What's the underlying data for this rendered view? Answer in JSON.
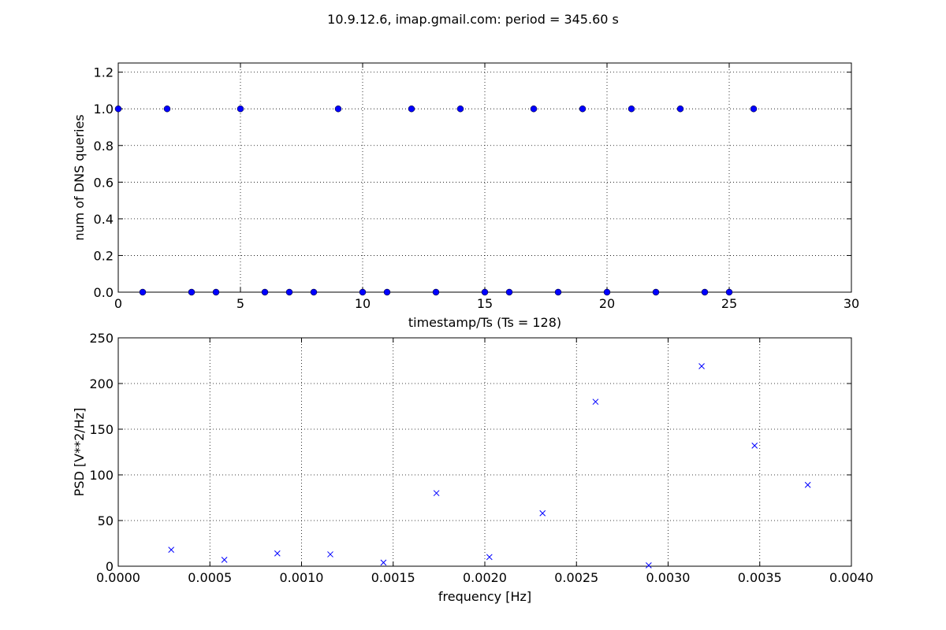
{
  "figure_title": "10.9.12.6, imap.gmail.com: period = 345.60 s",
  "colors": {
    "series": "#0000ff",
    "axis": "#000000"
  },
  "chart_data": [
    {
      "type": "scatter",
      "marker": "dot",
      "title": "",
      "xlabel": "timestamp/Ts (Ts = 128)",
      "ylabel": "num of DNS queries",
      "xlim": [
        0,
        30
      ],
      "ylim": [
        0,
        1.25
      ],
      "xticks": [
        0,
        5,
        10,
        15,
        20,
        25,
        30
      ],
      "xtick_labels": [
        "0",
        "5",
        "10",
        "15",
        "20",
        "25",
        "30"
      ],
      "yticks": [
        0,
        0.2,
        0.4,
        0.6,
        0.8,
        1.0,
        1.2
      ],
      "ytick_labels": [
        "0.0",
        "0.2",
        "0.4",
        "0.6",
        "0.8",
        "1.0",
        "1.2"
      ],
      "grid": true,
      "x": [
        0,
        1,
        2,
        3,
        4,
        5,
        6,
        7,
        8,
        9,
        10,
        11,
        12,
        13,
        14,
        15,
        16,
        17,
        18,
        19,
        20,
        21,
        22,
        23,
        24,
        25,
        26
      ],
      "y": [
        1,
        0,
        1,
        0,
        0,
        1,
        0,
        0,
        0,
        1,
        0,
        0,
        1,
        0,
        1,
        0,
        0,
        1,
        0,
        1,
        0,
        1,
        0,
        1,
        0,
        0,
        1
      ]
    },
    {
      "type": "scatter",
      "marker": "x",
      "title": "",
      "xlabel": "frequency [Hz]",
      "ylabel": "PSD [V**2/Hz]",
      "xlim": [
        0,
        0.004
      ],
      "ylim": [
        0,
        250
      ],
      "xticks": [
        0,
        0.0005,
        0.001,
        0.0015,
        0.002,
        0.0025,
        0.003,
        0.0035,
        0.004
      ],
      "xtick_labels": [
        "0.0000",
        "0.0005",
        "0.0010",
        "0.0015",
        "0.0020",
        "0.0025",
        "0.0030",
        "0.0035",
        "0.0040"
      ],
      "yticks": [
        0,
        50,
        100,
        150,
        200,
        250
      ],
      "ytick_labels": [
        "0",
        "50",
        "100",
        "150",
        "200",
        "250"
      ],
      "grid": true,
      "x": [
        0.000289,
        0.000579,
        0.000868,
        0.001157,
        0.001447,
        0.001736,
        0.002025,
        0.002315,
        0.002604,
        0.002894,
        0.003183,
        0.003472,
        0.003762
      ],
      "y": [
        18,
        7,
        14,
        13,
        4,
        80,
        10,
        58,
        180,
        1,
        219,
        132,
        89
      ]
    }
  ]
}
